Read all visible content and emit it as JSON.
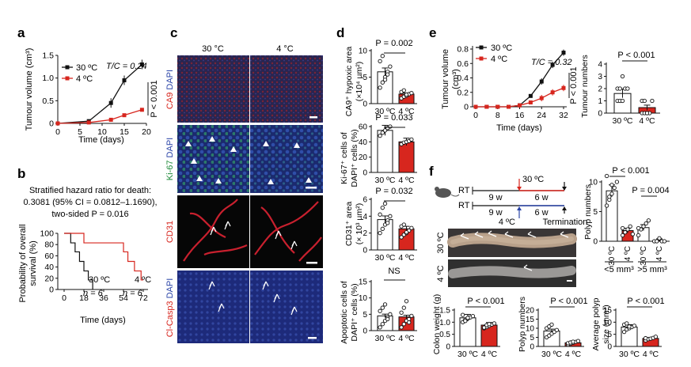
{
  "panel_letters": {
    "a": "a",
    "b": "b",
    "c": "c",
    "d": "d",
    "e": "e",
    "f": "f"
  },
  "colors": {
    "black": "#111111",
    "red": "#d7261e",
    "red_bar": "#d7261e",
    "white_bar": "#ffffff",
    "grey": "#555555"
  },
  "panel_a": {
    "ylabel": "Tumour volume (cm³)",
    "xlabel": "Time (days)",
    "legend": [
      "30 ºC",
      "4 ºC"
    ],
    "tc": "T/C = 0.24",
    "p": "P < 0.001",
    "yticks": [
      "0",
      "0.5",
      "1.0",
      "1.5"
    ],
    "xticks": [
      "0",
      "5",
      "10",
      "15",
      "20"
    ]
  },
  "panel_b": {
    "line1": "Stratified hazard ratio for death:",
    "line2": "0.3081 (95% CI = 0.0812–1.1690),",
    "line3": "two-sided P = 0.016",
    "ylabel1": "Probability of overall",
    "ylabel2": "survival (%)",
    "xlabel": "Time (days)",
    "yticks": [
      "0",
      "20",
      "40",
      "60",
      "80",
      "100"
    ],
    "xticks": [
      "0",
      "18",
      "36",
      "54",
      "72"
    ],
    "label30": "30 ºC",
    "label4": "4 ºC",
    "n30": "n = 6",
    "n4": "n = 6"
  },
  "panel_c": {
    "col1": "30 °C",
    "col2": "4 °C",
    "row1_a": "CA9",
    "row1_b": " DAPI",
    "row2_a": "Ki-67",
    "row2_b": " DAPI",
    "row3": "CD31",
    "row4_a": "Cl-Casp3",
    "row4_b": " DAPI"
  },
  "panel_d": {
    "ca9_ylabel1": "CA9⁺ hypoxic area",
    "ca9_ylabel2": "(×10⁴ µm²)",
    "ca9_p": "P = 0.002",
    "ca9_yticks": [
      "0",
      "5",
      "10"
    ],
    "ki67_ylabel1": "Ki-67⁺ cells of",
    "ki67_ylabel2": "DAPI⁺ cells (%)",
    "ki67_p": "P = 0.033",
    "ki67_yticks": [
      "0",
      "20",
      "40",
      "60"
    ],
    "cd31_ylabel1": "CD31⁺ area",
    "cd31_ylabel2": "(× 10³ µm²)",
    "cd31_p": "P = 0.032",
    "cd31_yticks": [
      "0",
      "2",
      "4",
      "6"
    ],
    "apo_ylabel1": "Apoptotic cells of",
    "apo_ylabel2": "DAPI⁺ cells (%)",
    "apo_p": "NS",
    "apo_yticks": [
      "0",
      "5",
      "10",
      "15"
    ],
    "cat1": "30 ºC",
    "cat2": "4 ºC"
  },
  "panel_e": {
    "ylabel1": "Tumour volume",
    "ylabel2": "(cm³)",
    "xlabel": "Time (days)",
    "legend": [
      "30 ºC",
      "4 ºC"
    ],
    "tc": "T/C = 0.32",
    "p": "P < 0.001",
    "yticks": [
      "0",
      "0.2",
      "0.4",
      "0.6",
      "0.8"
    ],
    "xticks": [
      "0",
      "8",
      "16",
      "24",
      "32"
    ],
    "num_ylabel": "Tumour numbers",
    "num_p": "P < 0.001",
    "num_yticks": [
      "0",
      "1",
      "2",
      "3",
      "4"
    ],
    "cat1": "30 ºC",
    "cat2": "4 ºC"
  },
  "panel_f": {
    "rt1": "RT",
    "rt2": "RT",
    "w9a": "9 w",
    "w6a": "6 w",
    "w9b": "9 w",
    "w6b": "6 w",
    "t30": "30 ºC",
    "t4": "4 ºC",
    "termination": "Termination",
    "colon30": "30 ºC",
    "colon4": "4 ºC",
    "polyp_ylabel": "Polyp numbers",
    "polyp_p1": "P < 0.001",
    "polyp_p2": "P = 0.004",
    "polyp_yticks": [
      "0",
      "5",
      "10"
    ],
    "polyp_cats": [
      "30 ºC",
      "4 ºC",
      "30 ºC",
      "4 ºC"
    ],
    "size_small": "<5 mm³",
    "size_large": ">5 mm³",
    "cw_ylabel": "Colon weight (g)",
    "cw_p": "P < 0.001",
    "cw_yticks": [
      "0",
      "0.5",
      "1.0",
      "1.5"
    ],
    "pn_ylabel": "Polyp numbers",
    "pn_p": "P < 0.001",
    "pn_yticks": [
      "0",
      "5",
      "10",
      "15",
      "20"
    ],
    "ps_ylabel1": "Average polyp",
    "ps_ylabel2": "size (mm³)",
    "ps_p": "P < 0.001",
    "ps_yticks": [
      "0",
      "5",
      "10",
      "15"
    ],
    "cat1": "30 ºC",
    "cat2": "4 ºC"
  },
  "chart_data": [
    {
      "type": "line",
      "panel": "a",
      "x": [
        0,
        7,
        12,
        15,
        19
      ],
      "series": [
        {
          "name": "30 ºC",
          "values": [
            0,
            0.05,
            0.45,
            0.95,
            1.3
          ]
        },
        {
          "name": "4 ºC",
          "values": [
            0,
            0.02,
            0.08,
            0.18,
            0.3
          ]
        }
      ],
      "xlim": [
        0,
        20
      ],
      "ylim": [
        0,
        1.5
      ]
    },
    {
      "type": "line",
      "panel": "b",
      "series": [
        {
          "name": "30 ºC",
          "x": [
            0,
            6,
            10,
            14,
            18,
            22,
            26
          ],
          "values": [
            100,
            83,
            67,
            50,
            33,
            17,
            0
          ]
        },
        {
          "name": "4 ºC",
          "x": [
            0,
            18,
            50,
            54,
            58,
            64,
            70
          ],
          "values": [
            100,
            83,
            83,
            67,
            50,
            33,
            17
          ]
        }
      ],
      "xlim": [
        0,
        72
      ],
      "ylim": [
        0,
        100
      ]
    },
    {
      "type": "bar",
      "panel": "d-CA9",
      "categories": [
        "30 ºC",
        "4 ºC"
      ],
      "values": [
        6,
        1.8
      ],
      "ylim": [
        0,
        10
      ]
    },
    {
      "type": "bar",
      "panel": "d-Ki67",
      "categories": [
        "30 ºC",
        "4 ºC"
      ],
      "values": [
        55,
        40
      ],
      "ylim": [
        0,
        60
      ]
    },
    {
      "type": "bar",
      "panel": "d-CD31",
      "categories": [
        "30 ºC",
        "4 ºC"
      ],
      "values": [
        3.6,
        2.5
      ],
      "ylim": [
        0,
        6
      ]
    },
    {
      "type": "bar",
      "panel": "d-apoptotic",
      "categories": [
        "30 ºC",
        "4 ºC"
      ],
      "values": [
        4.5,
        4.2
      ],
      "ylim": [
        0,
        15
      ]
    },
    {
      "type": "line",
      "panel": "e",
      "x": [
        0,
        4,
        8,
        12,
        16,
        20,
        24,
        28,
        32
      ],
      "series": [
        {
          "name": "30 ºC",
          "values": [
            0,
            0,
            0,
            0,
            0.02,
            0.15,
            0.35,
            0.58,
            0.75
          ]
        },
        {
          "name": "4 ºC",
          "values": [
            0,
            0,
            0,
            0,
            0.02,
            0.06,
            0.12,
            0.2,
            0.26
          ]
        }
      ],
      "xlim": [
        0,
        32
      ],
      "ylim": [
        0,
        0.8
      ]
    },
    {
      "type": "bar",
      "panel": "e-tumour-numbers",
      "categories": [
        "30 ºC",
        "4 ºC"
      ],
      "values": [
        1.6,
        0.45
      ],
      "ylim": [
        0,
        4
      ]
    },
    {
      "type": "bar",
      "panel": "f-polyp-numbers",
      "categories": [
        "30 ºC",
        "4 ºC",
        "30 ºC",
        "4 ºC"
      ],
      "values": [
        8.5,
        1.8,
        2.3,
        0.2
      ],
      "ylim": [
        0,
        10
      ]
    },
    {
      "type": "bar",
      "panel": "f-colon-weight",
      "categories": [
        "30 ºC",
        "4 ºC"
      ],
      "values": [
        1.18,
        0.88
      ],
      "ylim": [
        0,
        1.5
      ]
    },
    {
      "type": "bar",
      "panel": "f-polyp-number",
      "categories": [
        "30 ºC",
        "4 ºC"
      ],
      "values": [
        8.5,
        2
      ],
      "ylim": [
        0,
        20
      ]
    },
    {
      "type": "bar",
      "panel": "f-polyp-size",
      "categories": [
        "30 ºC",
        "4 ºC"
      ],
      "values": [
        8,
        3.3
      ],
      "ylim": [
        0,
        15
      ]
    }
  ]
}
